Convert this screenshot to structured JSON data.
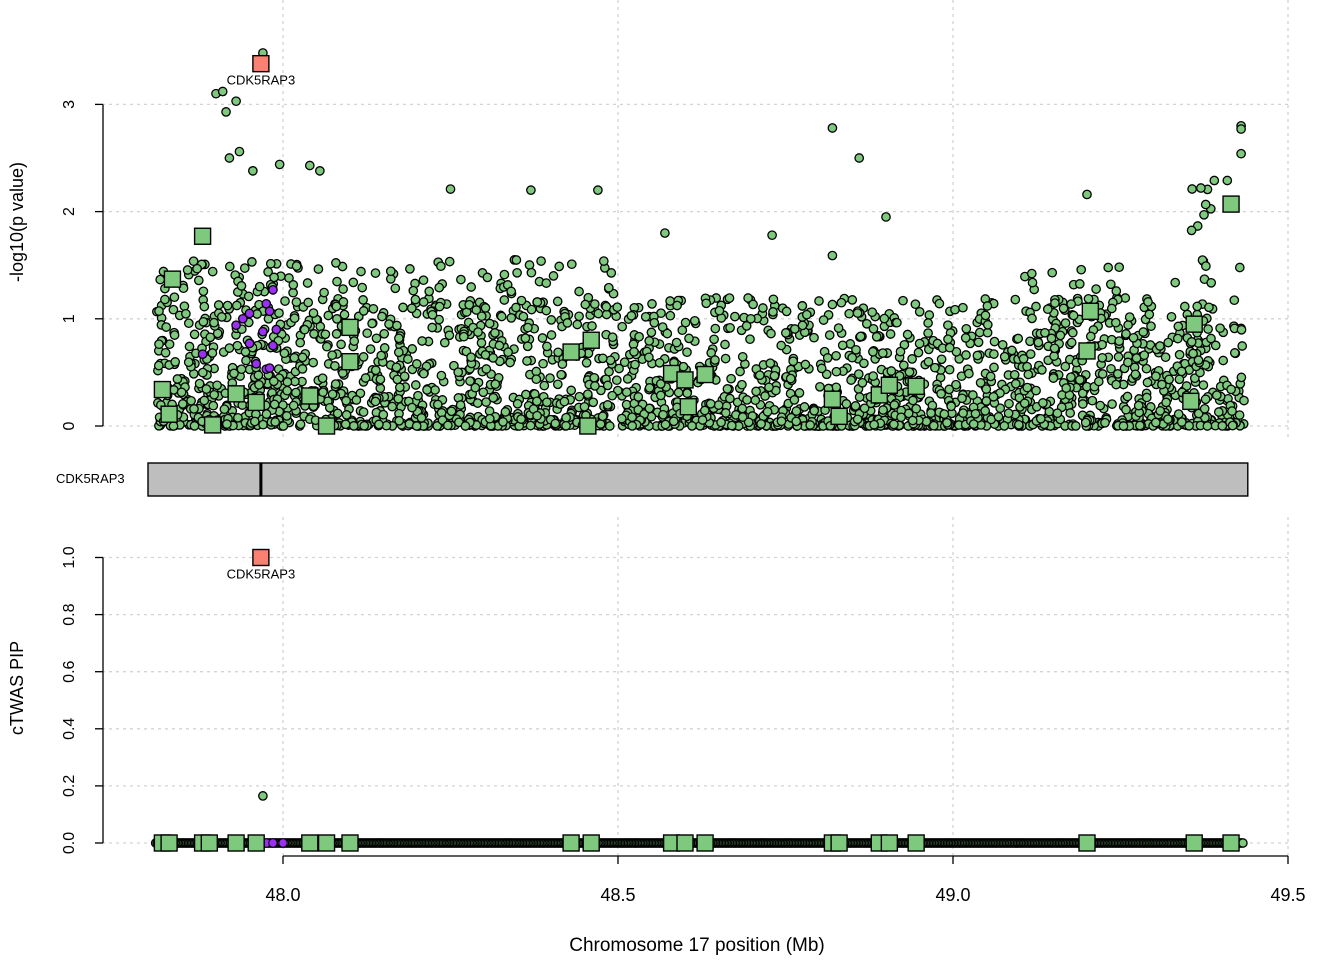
{
  "colors": {
    "snp_fill": "#7fc97f",
    "gene_fill": "#7fc97f",
    "focus_fill": "#fa8072",
    "ld_high_fill": "#9b30f2",
    "gene_track_fill": "#bebebe",
    "grid": "#d3d3d3"
  },
  "chart_data": [
    {
      "type": "scatter",
      "panel": "top",
      "ylabel": "-log10(p value)",
      "xlim": [
        47.8,
        49.5
      ],
      "ylim": [
        0,
        3.5
      ],
      "yticks": [
        "0",
        "1",
        "2",
        "3"
      ],
      "grid": true,
      "focus_gene": {
        "name": "CDK5RAP3",
        "x": 47.967,
        "y": 3.38
      },
      "genes": [
        {
          "x": 47.82,
          "y": 0.34
        },
        {
          "x": 47.83,
          "y": 0.11
        },
        {
          "x": 47.835,
          "y": 1.37
        },
        {
          "x": 47.88,
          "y": 1.77
        },
        {
          "x": 47.895,
          "y": 0.01
        },
        {
          "x": 47.93,
          "y": 0.3
        },
        {
          "x": 47.96,
          "y": 0.22
        },
        {
          "x": 48.04,
          "y": 0.28
        },
        {
          "x": 48.065,
          "y": 0.0
        },
        {
          "x": 48.1,
          "y": 0.92
        },
        {
          "x": 48.1,
          "y": 0.6
        },
        {
          "x": 48.43,
          "y": 0.69
        },
        {
          "x": 48.455,
          "y": 0.0
        },
        {
          "x": 48.46,
          "y": 0.8
        },
        {
          "x": 48.58,
          "y": 0.49
        },
        {
          "x": 48.6,
          "y": 0.43
        },
        {
          "x": 48.605,
          "y": 0.18
        },
        {
          "x": 48.63,
          "y": 0.48
        },
        {
          "x": 48.82,
          "y": 0.25
        },
        {
          "x": 48.83,
          "y": 0.09
        },
        {
          "x": 48.89,
          "y": 0.29
        },
        {
          "x": 48.905,
          "y": 0.38
        },
        {
          "x": 48.945,
          "y": 0.37
        },
        {
          "x": 49.2,
          "y": 0.7
        },
        {
          "x": 49.205,
          "y": 1.07
        },
        {
          "x": 49.355,
          "y": 0.23
        },
        {
          "x": 49.36,
          "y": 0.95
        },
        {
          "x": 49.415,
          "y": 2.07
        }
      ],
      "ld_snps": [
        {
          "x": 47.88,
          "y": 0.67
        },
        {
          "x": 47.93,
          "y": 0.94
        },
        {
          "x": 47.94,
          "y": 1.0
        },
        {
          "x": 47.95,
          "y": 1.05
        },
        {
          "x": 47.95,
          "y": 0.77
        },
        {
          "x": 47.96,
          "y": 0.58
        },
        {
          "x": 47.97,
          "y": 0.88
        },
        {
          "x": 47.975,
          "y": 1.14
        },
        {
          "x": 47.98,
          "y": 1.07
        },
        {
          "x": 47.985,
          "y": 1.27
        },
        {
          "x": 47.99,
          "y": 0.9
        },
        {
          "x": 47.975,
          "y": 0.53
        },
        {
          "x": 47.98,
          "y": 0.54
        },
        {
          "x": 47.985,
          "y": 0.75
        }
      ],
      "snps_notable": [
        {
          "x": 47.97,
          "y": 3.48
        },
        {
          "x": 47.9,
          "y": 3.1
        },
        {
          "x": 47.91,
          "y": 3.12
        },
        {
          "x": 47.93,
          "y": 3.03
        },
        {
          "x": 47.915,
          "y": 2.93
        },
        {
          "x": 47.935,
          "y": 2.56
        },
        {
          "x": 47.92,
          "y": 2.5
        },
        {
          "x": 47.995,
          "y": 2.44
        },
        {
          "x": 48.04,
          "y": 2.43
        },
        {
          "x": 48.055,
          "y": 2.38
        },
        {
          "x": 47.955,
          "y": 2.38
        },
        {
          "x": 48.82,
          "y": 2.78
        },
        {
          "x": 48.86,
          "y": 2.5
        },
        {
          "x": 49.43,
          "y": 2.8
        },
        {
          "x": 49.43,
          "y": 2.77
        },
        {
          "x": 49.43,
          "y": 2.54
        },
        {
          "x": 49.39,
          "y": 2.29
        },
        {
          "x": 49.37,
          "y": 2.22
        },
        {
          "x": 49.2,
          "y": 2.16
        },
        {
          "x": 48.25,
          "y": 2.21
        },
        {
          "x": 48.37,
          "y": 2.2
        },
        {
          "x": 48.47,
          "y": 2.2
        },
        {
          "x": 48.9,
          "y": 1.95
        },
        {
          "x": 48.82,
          "y": 1.59
        },
        {
          "x": 48.73,
          "y": 1.78
        },
        {
          "x": 48.57,
          "y": 1.8
        }
      ]
    },
    {
      "type": "gene_track",
      "panel": "middle",
      "label": "CDK5RAP3",
      "span": [
        47.8,
        49.44
      ],
      "marker_x": 47.967
    },
    {
      "type": "scatter",
      "panel": "bottom",
      "xlabel": "Chromosome 17 position (Mb)",
      "ylabel": "cTWAS PIP",
      "xlim": [
        47.8,
        49.5
      ],
      "ylim": [
        0.0,
        1.0
      ],
      "xticks": [
        "48.0",
        "48.5",
        "49.0",
        "49.5"
      ],
      "yticks": [
        "0.0",
        "0.2",
        "0.4",
        "0.6",
        "0.8",
        "1.0"
      ],
      "grid": true,
      "focus_gene": {
        "name": "CDK5RAP3",
        "x": 47.967,
        "y": 1.0
      },
      "snp_pip": [
        {
          "x": 47.97,
          "y": 0.165
        }
      ],
      "genes_x": [
        47.82,
        47.83,
        47.88,
        47.89,
        47.93,
        47.96,
        48.04,
        48.065,
        48.1,
        48.43,
        48.46,
        48.58,
        48.6,
        48.63,
        48.82,
        48.83,
        48.89,
        48.905,
        48.945,
        49.2,
        49.36,
        49.415
      ]
    }
  ]
}
